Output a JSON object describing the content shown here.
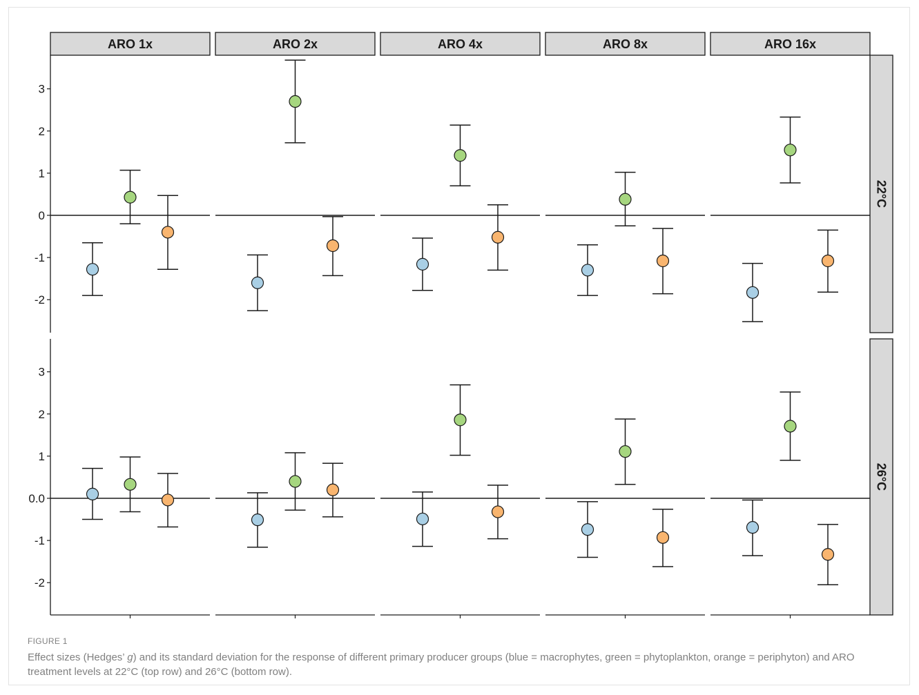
{
  "figure": {
    "label": "FIGURE 1",
    "caption_pre": "Effect sizes (Hedges’ ",
    "caption_italic": "g",
    "caption_post": ") and its standard deviation for the response of different primary producer groups (blue = macrophytes, green = phytoplankton, orange = periphyton) and ARO treatment levels at 22°C (top row) and 26°C (bottom row)."
  },
  "chart_data": {
    "type": "scatter",
    "layout": "facet-grid",
    "columns": [
      "ARO 1x",
      "ARO 2x",
      "ARO 4x",
      "ARO 8x",
      "ARO 16x"
    ],
    "rows": [
      "22°C",
      "26°C"
    ],
    "y_ticks": [
      3,
      2,
      1,
      0,
      -1,
      -2
    ],
    "y_tick_labels": [
      "3",
      "2",
      "1",
      "0.0",
      "-1",
      "-2"
    ],
    "ylim": [
      -2.8,
      3.8
    ],
    "reference_line": 0,
    "groups": [
      {
        "key": "macrophytes",
        "color": "#a9cfe5"
      },
      {
        "key": "phytoplankton",
        "color": "#a6d67f"
      },
      {
        "key": "periphyton",
        "color": "#f9b56f"
      }
    ],
    "zero_tick_label_by_row": [
      "0",
      "0.0"
    ],
    "panels": [
      {
        "row": "22°C",
        "column": "ARO 1x",
        "points": [
          {
            "group": "macrophytes",
            "mean": -1.28,
            "lower": -1.9,
            "upper": -0.65
          },
          {
            "group": "phytoplankton",
            "mean": 0.43,
            "lower": -0.2,
            "upper": 1.07
          },
          {
            "group": "periphyton",
            "mean": -0.4,
            "lower": -1.28,
            "upper": 0.47
          }
        ]
      },
      {
        "row": "22°C",
        "column": "ARO 2x",
        "points": [
          {
            "group": "macrophytes",
            "mean": -1.6,
            "lower": -2.26,
            "upper": -0.94
          },
          {
            "group": "phytoplankton",
            "mean": 2.7,
            "lower": 1.72,
            "upper": 3.68
          },
          {
            "group": "periphyton",
            "mean": -0.72,
            "lower": -1.43,
            "upper": -0.03
          }
        ]
      },
      {
        "row": "22°C",
        "column": "ARO 4x",
        "points": [
          {
            "group": "macrophytes",
            "mean": -1.16,
            "lower": -1.78,
            "upper": -0.54
          },
          {
            "group": "phytoplankton",
            "mean": 1.42,
            "lower": 0.7,
            "upper": 2.14
          },
          {
            "group": "periphyton",
            "mean": -0.52,
            "lower": -1.3,
            "upper": 0.25
          }
        ]
      },
      {
        "row": "22°C",
        "column": "ARO 8x",
        "points": [
          {
            "group": "macrophytes",
            "mean": -1.3,
            "lower": -1.9,
            "upper": -0.7
          },
          {
            "group": "phytoplankton",
            "mean": 0.38,
            "lower": -0.25,
            "upper": 1.02
          },
          {
            "group": "periphyton",
            "mean": -1.08,
            "lower": -1.86,
            "upper": -0.31
          }
        ]
      },
      {
        "row": "22°C",
        "column": "ARO 16x",
        "points": [
          {
            "group": "macrophytes",
            "mean": -1.83,
            "lower": -2.52,
            "upper": -1.14
          },
          {
            "group": "phytoplankton",
            "mean": 1.55,
            "lower": 0.77,
            "upper": 2.33
          },
          {
            "group": "periphyton",
            "mean": -1.08,
            "lower": -1.82,
            "upper": -0.35
          }
        ]
      },
      {
        "row": "26°C",
        "column": "ARO 1x",
        "points": [
          {
            "group": "macrophytes",
            "mean": 0.1,
            "lower": -0.5,
            "upper": 0.71
          },
          {
            "group": "phytoplankton",
            "mean": 0.33,
            "lower": -0.32,
            "upper": 0.98
          },
          {
            "group": "periphyton",
            "mean": -0.04,
            "lower": -0.68,
            "upper": 0.59
          }
        ]
      },
      {
        "row": "26°C",
        "column": "ARO 2x",
        "points": [
          {
            "group": "macrophytes",
            "mean": -0.51,
            "lower": -1.16,
            "upper": 0.13
          },
          {
            "group": "phytoplankton",
            "mean": 0.4,
            "lower": -0.28,
            "upper": 1.08
          },
          {
            "group": "periphyton",
            "mean": 0.2,
            "lower": -0.44,
            "upper": 0.83
          }
        ]
      },
      {
        "row": "26°C",
        "column": "ARO 4x",
        "points": [
          {
            "group": "macrophytes",
            "mean": -0.49,
            "lower": -1.14,
            "upper": 0.15
          },
          {
            "group": "phytoplankton",
            "mean": 1.86,
            "lower": 1.02,
            "upper": 2.69
          },
          {
            "group": "periphyton",
            "mean": -0.32,
            "lower": -0.96,
            "upper": 0.31
          }
        ]
      },
      {
        "row": "26°C",
        "column": "ARO 8x",
        "points": [
          {
            "group": "macrophytes",
            "mean": -0.74,
            "lower": -1.4,
            "upper": -0.08
          },
          {
            "group": "phytoplankton",
            "mean": 1.11,
            "lower": 0.33,
            "upper": 1.88
          },
          {
            "group": "periphyton",
            "mean": -0.93,
            "lower": -1.62,
            "upper": -0.26
          }
        ]
      },
      {
        "row": "26°C",
        "column": "ARO 16x",
        "points": [
          {
            "group": "macrophytes",
            "mean": -0.69,
            "lower": -1.36,
            "upper": -0.04
          },
          {
            "group": "phytoplankton",
            "mean": 1.71,
            "lower": 0.9,
            "upper": 2.52
          },
          {
            "group": "periphyton",
            "mean": -1.33,
            "lower": -2.05,
            "upper": -0.62
          }
        ]
      }
    ]
  }
}
